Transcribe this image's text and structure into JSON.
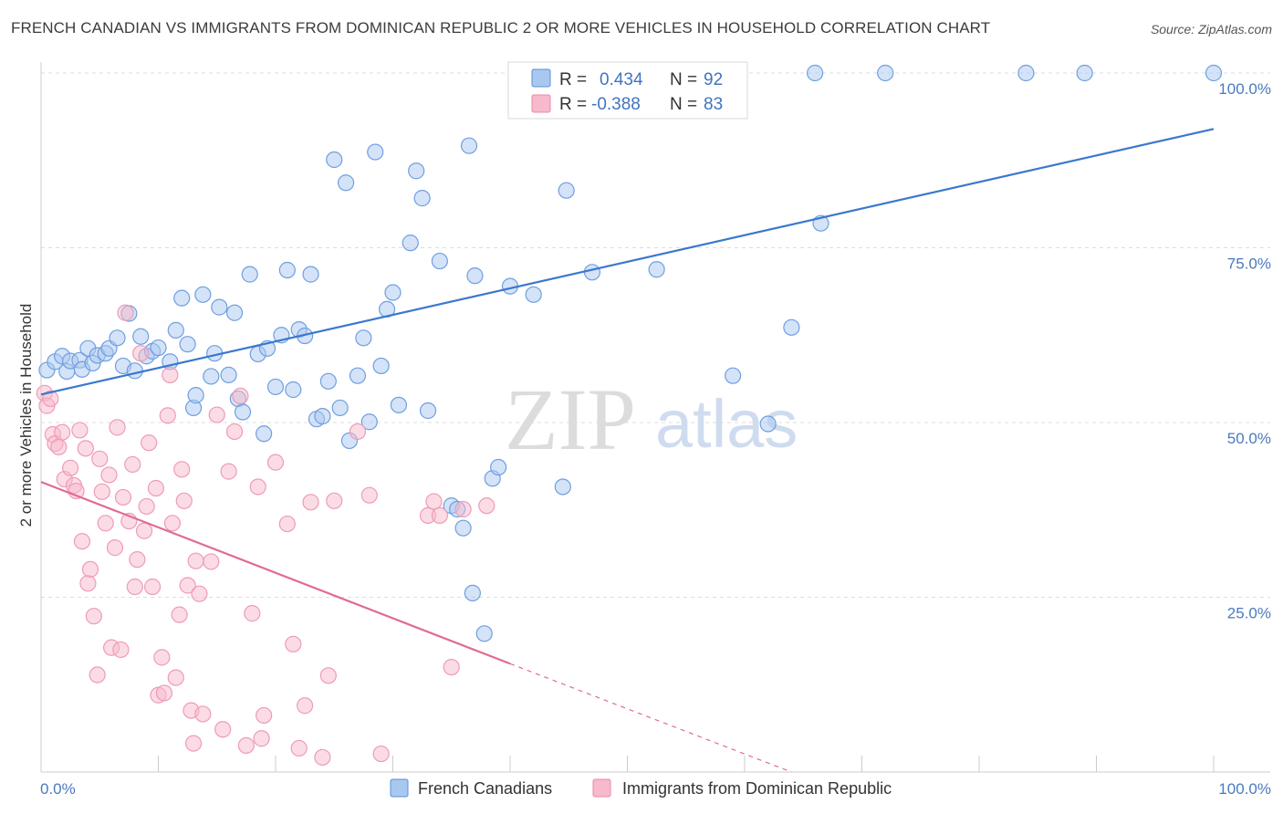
{
  "title": "FRENCH CANADIAN VS IMMIGRANTS FROM DOMINICAN REPUBLIC 2 OR MORE VEHICLES IN HOUSEHOLD CORRELATION CHART",
  "source": "Source: ZipAtlas.com",
  "watermark": {
    "zip": "ZIP",
    "atlas": "atlas"
  },
  "legend": {
    "r_label": "R =",
    "n_label": "N =",
    "rows": [
      {
        "r": "0.434",
        "n": "92",
        "color": "#a9c8f0",
        "stroke": "#5b8fd8"
      },
      {
        "r": "-0.388",
        "n": "83",
        "color": "#f7b9cc",
        "stroke": "#e889a8"
      }
    ]
  },
  "chart_data": {
    "type": "scatter",
    "title": "FRENCH CANADIAN VS IMMIGRANTS FROM DOMINICAN REPUBLIC 2 OR MORE VEHICLES IN HOUSEHOLD CORRELATION CHART",
    "xlabel": "",
    "ylabel": "2 or more Vehicles in Household",
    "xlim": [
      0,
      100
    ],
    "ylim": [
      0,
      100
    ],
    "x_tick_labels": [
      "0.0%",
      "100.0%"
    ],
    "y_ticks": [
      25,
      50,
      75,
      100
    ],
    "y_tick_labels": [
      "25.0%",
      "50.0%",
      "75.0%",
      "100.0%"
    ],
    "grid": true,
    "legend_position": "bottom",
    "series": [
      {
        "name": "French Canadians",
        "color": "#a9c8f0",
        "line_color": "#3a78cf",
        "trend": {
          "x": [
            0,
            100
          ],
          "y": [
            54,
            92
          ]
        },
        "points": [
          [
            0.5,
            57.5
          ],
          [
            1.2,
            58.7
          ],
          [
            1.8,
            59.5
          ],
          [
            2.2,
            57.3
          ],
          [
            2.5,
            58.8
          ],
          [
            3.3,
            58.9
          ],
          [
            3.5,
            57.6
          ],
          [
            4,
            60.6
          ],
          [
            4.4,
            58.5
          ],
          [
            4.8,
            59.6
          ],
          [
            5.5,
            59.9
          ],
          [
            5.8,
            60.6
          ],
          [
            6.5,
            62.1
          ],
          [
            7,
            58.1
          ],
          [
            7.5,
            65.6
          ],
          [
            8,
            57.4
          ],
          [
            8.5,
            62.3
          ],
          [
            9,
            59.5
          ],
          [
            9.5,
            60.2
          ],
          [
            10,
            60.7
          ],
          [
            11,
            58.7
          ],
          [
            11.5,
            63.2
          ],
          [
            12,
            67.8
          ],
          [
            12.5,
            61.2
          ],
          [
            13,
            52.1
          ],
          [
            13.2,
            53.9
          ],
          [
            13.8,
            68.3
          ],
          [
            14.5,
            56.6
          ],
          [
            14.8,
            59.9
          ],
          [
            15.2,
            66.5
          ],
          [
            16,
            56.8
          ],
          [
            16.5,
            65.7
          ],
          [
            16.8,
            53.4
          ],
          [
            17.2,
            51.5
          ],
          [
            17.8,
            71.2
          ],
          [
            18.5,
            59.8
          ],
          [
            19,
            48.4
          ],
          [
            19.3,
            60.6
          ],
          [
            20,
            55.1
          ],
          [
            20.5,
            62.5
          ],
          [
            21,
            71.8
          ],
          [
            21.5,
            54.7
          ],
          [
            22,
            63.3
          ],
          [
            22.5,
            62.4
          ],
          [
            23,
            71.2
          ],
          [
            23.5,
            50.5
          ],
          [
            24,
            50.9
          ],
          [
            24.5,
            55.9
          ],
          [
            25,
            87.6
          ],
          [
            25.5,
            52.1
          ],
          [
            26,
            84.3
          ],
          [
            26.3,
            47.4
          ],
          [
            27,
            56.7
          ],
          [
            27.5,
            62.1
          ],
          [
            28,
            50.1
          ],
          [
            28.5,
            88.7
          ],
          [
            29,
            58.1
          ],
          [
            29.5,
            66.2
          ],
          [
            30,
            68.6
          ],
          [
            30.5,
            52.5
          ],
          [
            31.5,
            75.7
          ],
          [
            32,
            86
          ],
          [
            32.5,
            82.1
          ],
          [
            33,
            51.7
          ],
          [
            34,
            73.1
          ],
          [
            35,
            38.1
          ],
          [
            35.5,
            37.6
          ],
          [
            36,
            34.9
          ],
          [
            36.5,
            89.6
          ],
          [
            36.8,
            25.6
          ],
          [
            37,
            71
          ],
          [
            37.8,
            19.8
          ],
          [
            38.5,
            42
          ],
          [
            39,
            43.6
          ],
          [
            40,
            69.5
          ],
          [
            42,
            68.3
          ],
          [
            44.5,
            40.8
          ],
          [
            44.8,
            83.2
          ],
          [
            47,
            71.5
          ],
          [
            48,
            100
          ],
          [
            50,
            100
          ],
          [
            52.5,
            71.9
          ],
          [
            53.5,
            100
          ],
          [
            59,
            56.7
          ],
          [
            62,
            49.8
          ],
          [
            64,
            63.6
          ],
          [
            66,
            100
          ],
          [
            66.5,
            78.5
          ],
          [
            72,
            100
          ],
          [
            84,
            100
          ],
          [
            89,
            100
          ],
          [
            100,
            100
          ]
        ]
      },
      {
        "name": "Immigrants from Dominican Republic",
        "color": "#f7b9cc",
        "line_color": "#e06b95",
        "trend": {
          "x": [
            0,
            40
          ],
          "y": [
            41.5,
            15.5
          ]
        },
        "trend_dashed": {
          "x": [
            40,
            64
          ],
          "y": [
            15.5,
            0
          ]
        },
        "points": [
          [
            0.3,
            54.2
          ],
          [
            0.5,
            52.4
          ],
          [
            0.8,
            53.4
          ],
          [
            1,
            48.3
          ],
          [
            1.2,
            47
          ],
          [
            1.5,
            46.5
          ],
          [
            1.8,
            48.6
          ],
          [
            2,
            41.9
          ],
          [
            2.5,
            43.5
          ],
          [
            2.8,
            41
          ],
          [
            3,
            40.2
          ],
          [
            3.3,
            48.9
          ],
          [
            3.5,
            33
          ],
          [
            3.8,
            46.3
          ],
          [
            4,
            27
          ],
          [
            4.2,
            29
          ],
          [
            4.5,
            22.3
          ],
          [
            4.8,
            13.9
          ],
          [
            5,
            44.8
          ],
          [
            5.2,
            40.1
          ],
          [
            5.5,
            35.6
          ],
          [
            5.8,
            42.5
          ],
          [
            6,
            17.8
          ],
          [
            6.3,
            32.1
          ],
          [
            6.5,
            49.3
          ],
          [
            6.8,
            17.5
          ],
          [
            7,
            39.3
          ],
          [
            7.2,
            65.7
          ],
          [
            7.5,
            35.9
          ],
          [
            7.8,
            44
          ],
          [
            8,
            26.5
          ],
          [
            8.2,
            30.4
          ],
          [
            8.5,
            59.9
          ],
          [
            8.8,
            34.5
          ],
          [
            9,
            38
          ],
          [
            9.2,
            47.1
          ],
          [
            9.5,
            26.5
          ],
          [
            9.8,
            40.6
          ],
          [
            10,
            11
          ],
          [
            10.3,
            16.4
          ],
          [
            10.5,
            11.3
          ],
          [
            10.8,
            51
          ],
          [
            11,
            56.8
          ],
          [
            11.2,
            35.6
          ],
          [
            11.5,
            13.5
          ],
          [
            11.8,
            22.5
          ],
          [
            12,
            43.3
          ],
          [
            12.2,
            38.8
          ],
          [
            12.5,
            26.7
          ],
          [
            12.8,
            8.8
          ],
          [
            13,
            4.1
          ],
          [
            13.2,
            30.2
          ],
          [
            13.5,
            25.5
          ],
          [
            13.8,
            8.3
          ],
          [
            14.5,
            30.1
          ],
          [
            15,
            51.1
          ],
          [
            15.5,
            6.1
          ],
          [
            16,
            43
          ],
          [
            16.5,
            48.7
          ],
          [
            17,
            53.8
          ],
          [
            17.5,
            3.8
          ],
          [
            18,
            22.7
          ],
          [
            18.5,
            40.8
          ],
          [
            18.8,
            4.8
          ],
          [
            19,
            8.1
          ],
          [
            20,
            44.3
          ],
          [
            21,
            35.5
          ],
          [
            21.5,
            18.3
          ],
          [
            22,
            3.4
          ],
          [
            22.5,
            9.5
          ],
          [
            23,
            38.6
          ],
          [
            24,
            2.1
          ],
          [
            24.5,
            13.8
          ],
          [
            25,
            38.8
          ],
          [
            27,
            48.7
          ],
          [
            28,
            39.6
          ],
          [
            29,
            2.6
          ],
          [
            33,
            36.7
          ],
          [
            33.5,
            38.7
          ],
          [
            34,
            36.7
          ],
          [
            35,
            15
          ],
          [
            36,
            37.6
          ],
          [
            38,
            38.1
          ]
        ]
      }
    ]
  }
}
